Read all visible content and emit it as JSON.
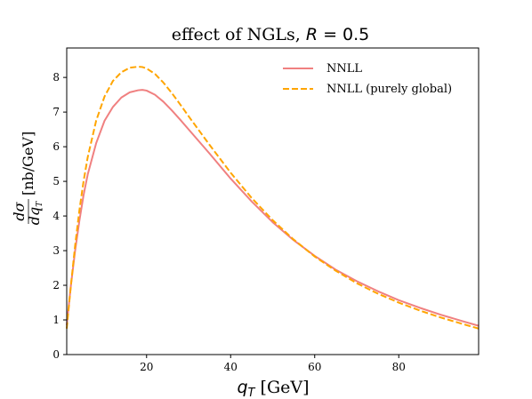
{
  "chart_data": {
    "type": "line",
    "title": "effect of NGLs, R = 0.5",
    "title_parts": {
      "prefix": "effect of NGLs, ",
      "var": "R",
      "equals": " = ",
      "value": "0.5"
    },
    "xlabel": "q_T [GeV]",
    "xlabel_parts": {
      "var": "q",
      "sub": "T",
      "unit": " [GeV]"
    },
    "ylabel": "dσ/dq_T [nb/GeV]",
    "ylabel_parts": {
      "num": "dσ",
      "den_d": "dq",
      "den_sub": "T",
      "unit": " [nb/GeV]"
    },
    "xlim": [
      1,
      99
    ],
    "ylim": [
      0,
      8.85
    ],
    "xticks": [
      20,
      40,
      60,
      80
    ],
    "xtick_labels": [
      "20",
      "40",
      "60",
      "80"
    ],
    "yticks": [
      0,
      1,
      2,
      3,
      4,
      5,
      6,
      7,
      8
    ],
    "ytick_labels": [
      "0",
      "1",
      "2",
      "3",
      "4",
      "5",
      "6",
      "7",
      "8"
    ],
    "grid": false,
    "legend_position": "top-right",
    "series": [
      {
        "name": "NNLL",
        "color": "#f08080",
        "style": "solid",
        "x": [
          1,
          2,
          3,
          4,
          5,
          6,
          8,
          10,
          12,
          14,
          16,
          18,
          19,
          20,
          22,
          24,
          26,
          28,
          30,
          35,
          40,
          45,
          50,
          55,
          60,
          65,
          70,
          75,
          80,
          85,
          90,
          95,
          99
        ],
        "y": [
          0.85,
          2.0,
          3.0,
          3.85,
          4.6,
          5.2,
          6.1,
          6.75,
          7.15,
          7.42,
          7.57,
          7.63,
          7.64,
          7.62,
          7.5,
          7.3,
          7.05,
          6.78,
          6.5,
          5.8,
          5.08,
          4.42,
          3.82,
          3.3,
          2.85,
          2.45,
          2.12,
          1.83,
          1.57,
          1.35,
          1.15,
          0.97,
          0.83
        ]
      },
      {
        "name": "NNLL (purely global)",
        "color": "#ffa500",
        "style": "dashed",
        "x": [
          1,
          2,
          3,
          4,
          5,
          6,
          8,
          10,
          12,
          14,
          16,
          18,
          19,
          20,
          22,
          24,
          26,
          28,
          30,
          35,
          40,
          45,
          50,
          55,
          60,
          65,
          70,
          75,
          80,
          85,
          90,
          95,
          99
        ],
        "y": [
          0.75,
          2.0,
          3.15,
          4.15,
          5.0,
          5.7,
          6.75,
          7.45,
          7.9,
          8.15,
          8.28,
          8.31,
          8.3,
          8.26,
          8.1,
          7.85,
          7.55,
          7.22,
          6.88,
          6.05,
          5.25,
          4.52,
          3.88,
          3.32,
          2.83,
          2.42,
          2.06,
          1.76,
          1.5,
          1.27,
          1.07,
          0.89,
          0.75
        ]
      }
    ]
  }
}
